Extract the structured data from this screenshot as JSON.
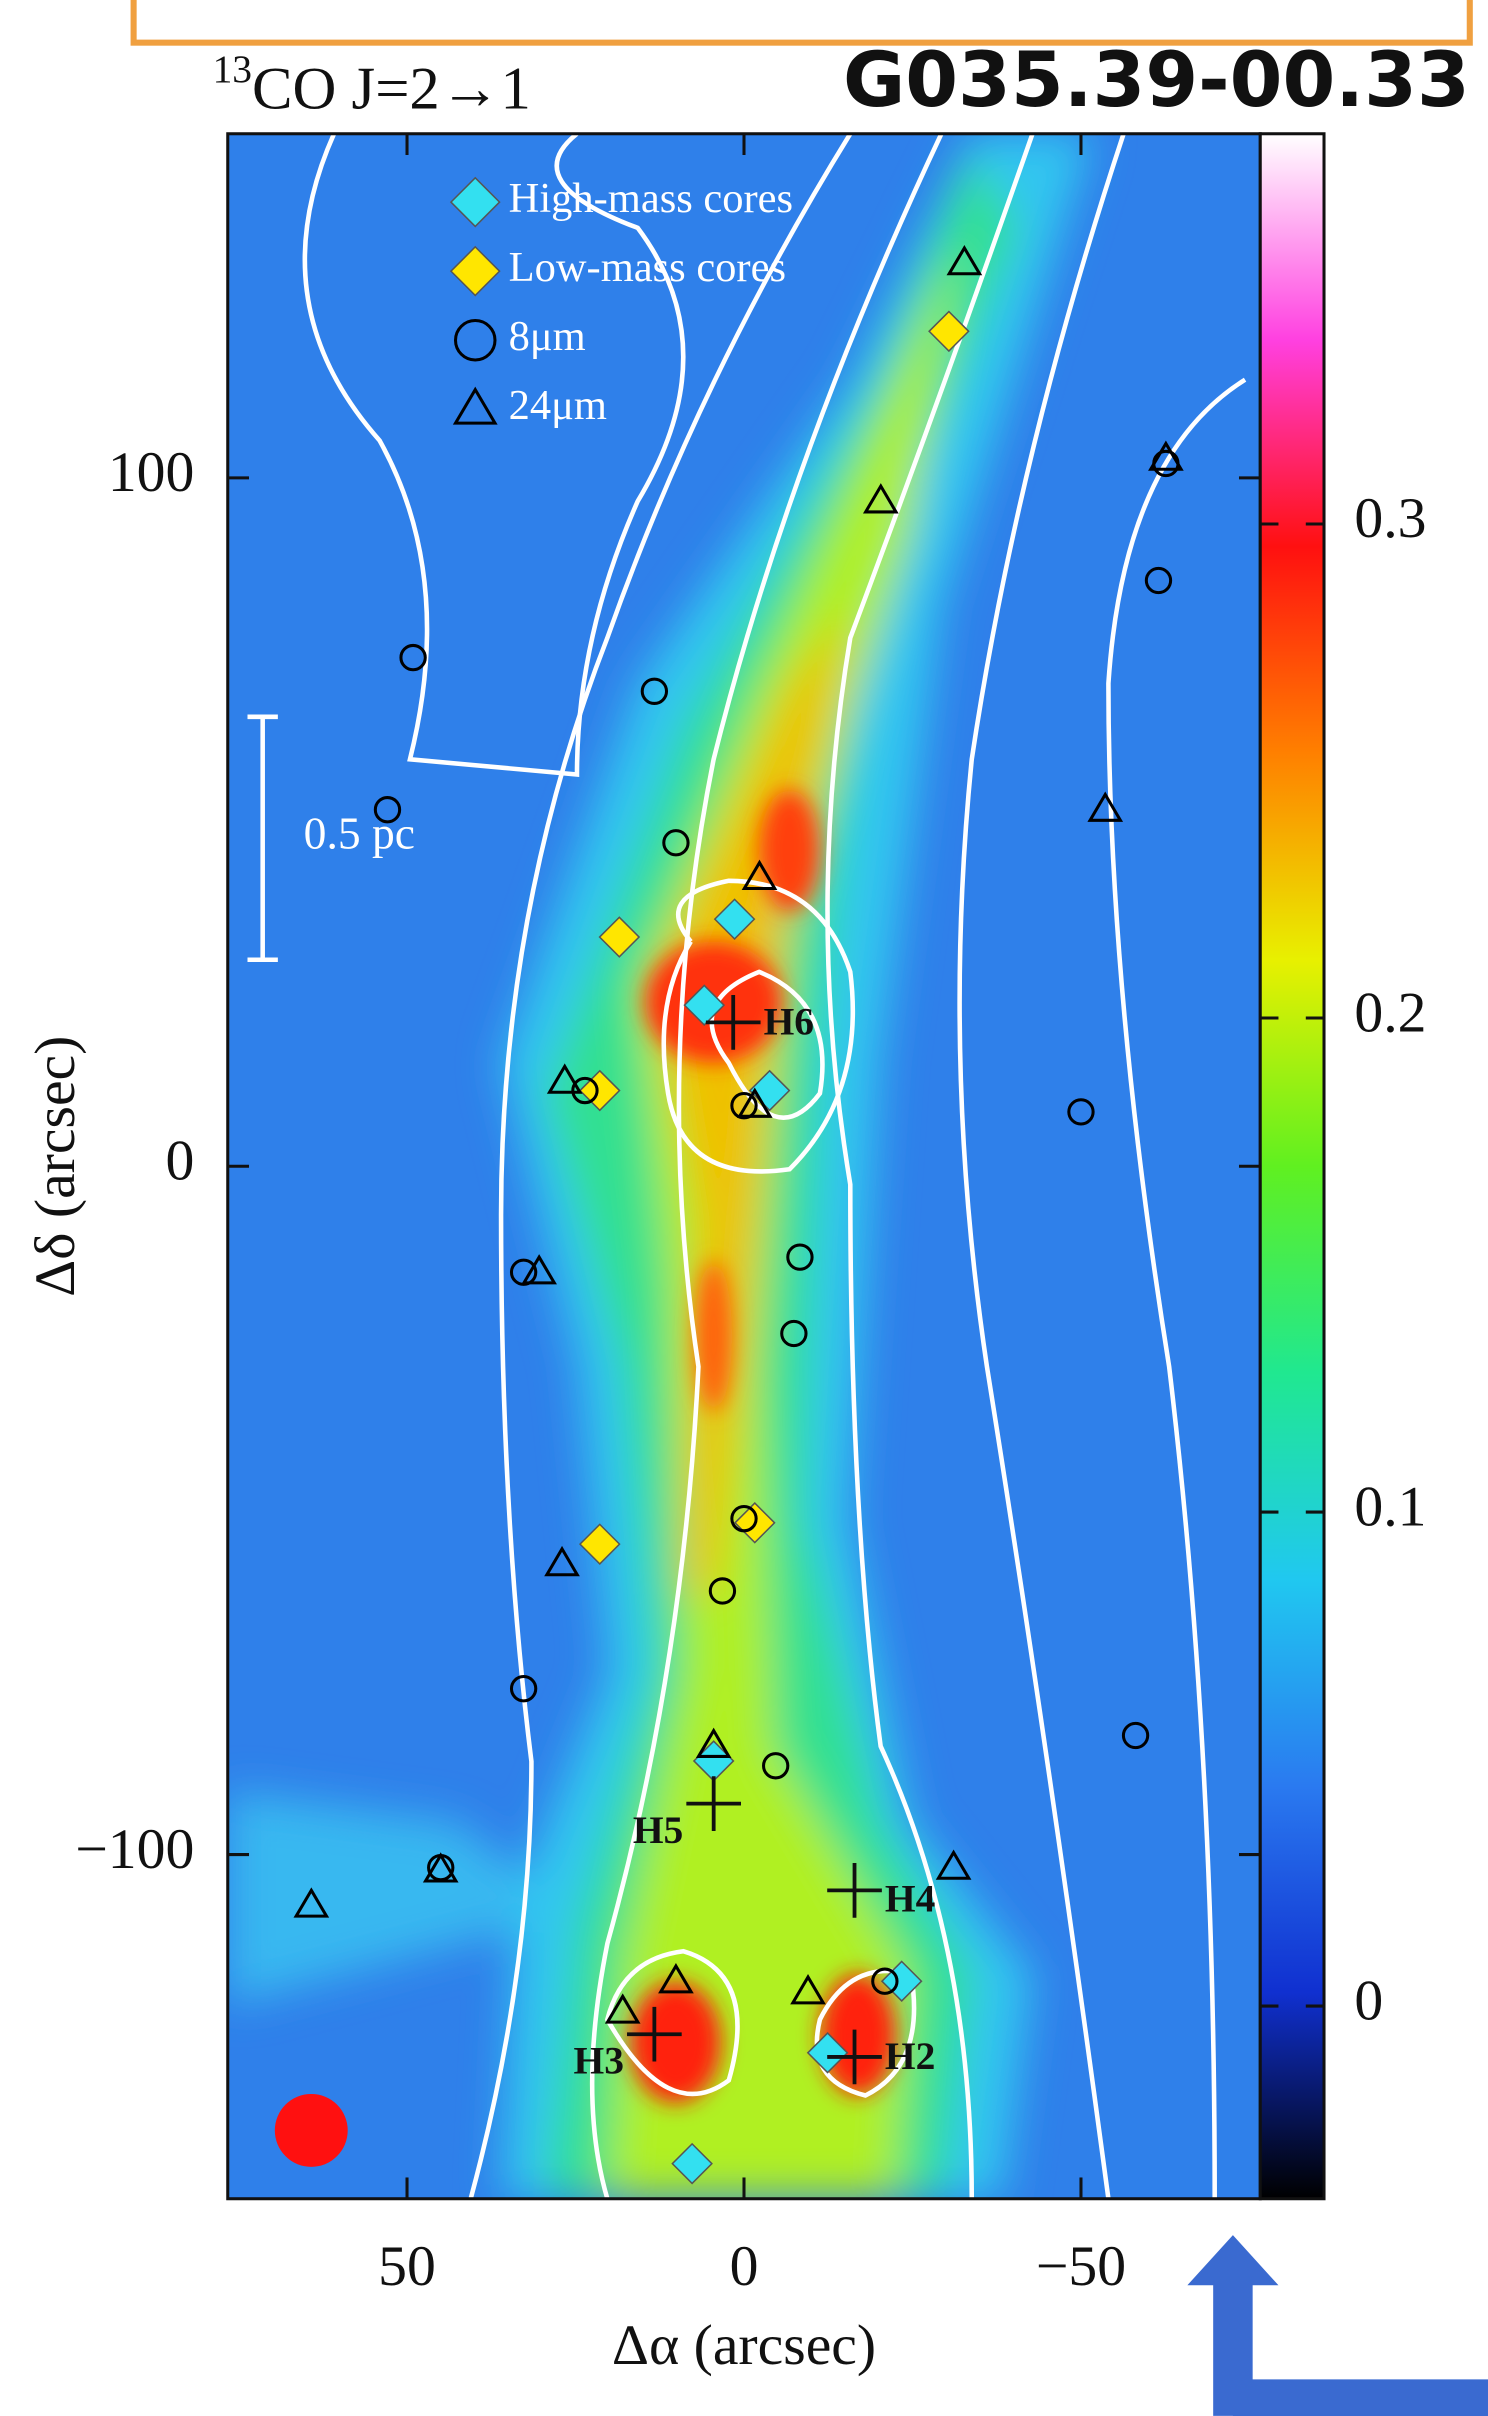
{
  "chart_data": {
    "type": "scatter",
    "title": "G035.39-00.33",
    "line_label": {
      "isotope": "13",
      "molecule": "CO  J=2→1"
    },
    "x_label": "Δα (arcsec)",
    "y_label": "Δδ (arcsec)",
    "xlim": [
      76.6,
      -76.6
    ],
    "ylim": [
      -150,
      150
    ],
    "xticks": [
      50,
      0,
      {
        "value": -50,
        "label": "−50"
      }
    ],
    "yticks": [
      100,
      0,
      {
        "value": -100,
        "label": "−100"
      }
    ],
    "scalebar": "0.5 pc",
    "series": [
      {
        "name": "High-mass cores",
        "marker": "diamond",
        "color": "#33e0f0",
        "x": [
          1.4,
          5.9,
          -3.8,
          4.5,
          -23.4,
          -12.4,
          7.7
        ],
        "y": [
          35.9,
          23.4,
          11.0,
          -86.4,
          -118.4,
          -128.8,
          -144.9
        ]
      },
      {
        "name": "Low-mass cores",
        "marker": "diamond",
        "color": "#ffe600",
        "x": [
          -30.4,
          18.5,
          21.4,
          -1.6,
          21.4
        ],
        "y": [
          121.3,
          33.3,
          11.0,
          -51.8,
          -54.9
        ]
      },
      {
        "name": "8μm",
        "marker": "circle",
        "color": "#000000",
        "x": [
          13.3,
          52.9,
          10.1,
          23.6,
          0,
          -8.3,
          32.7,
          0,
          3.2,
          -4.7,
          45,
          -20.9,
          -62.6,
          49.1,
          -7.4,
          32.7,
          -58.1,
          -50,
          -61.5
        ],
        "y": [
          69.0,
          51.8,
          47,
          11.0,
          8.8,
          -13.2,
          -15.4,
          -51.2,
          -61.7,
          -87.1,
          -101.9,
          -118.4,
          102.1,
          73.9,
          -24.3,
          -75.9,
          -82.7,
          7.9,
          85.1
        ]
      },
      {
        "name": "24μm",
        "marker": "triangle",
        "color": "#000000",
        "x": [
          -32.7,
          -53.6,
          26.6,
          -1.6,
          -2.3,
          4.5,
          45,
          18,
          -9.5,
          10.1,
          -62.6,
          -20.3,
          30.4,
          27,
          64.2,
          -31.1
        ],
        "y": [
          131.2,
          51.8,
          12.3,
          8.8,
          41.9,
          -84.2,
          -102.3,
          -122.8,
          -120,
          -118.4,
          102.8,
          96.6,
          -15.4,
          -57.8,
          -107.4,
          -101.9
        ]
      }
    ],
    "annotations": [
      {
        "text": "H6",
        "x": 1.6,
        "y": 20.9
      },
      {
        "text": "H5",
        "x": 4.5,
        "y": -92.6
      },
      {
        "text": "H4",
        "x": -16.4,
        "y": -105.2
      },
      {
        "text": "H2",
        "x": -16.4,
        "y": -129.4
      },
      {
        "text": "H3",
        "x": 13.3,
        "y": -126.1
      }
    ],
    "colorbar": {
      "lim": [
        -0.039,
        0.379
      ],
      "ticks": [
        0,
        0.1,
        0.2,
        0.3
      ],
      "colors": [
        "#000000",
        "#1030d0",
        "#2a7af0",
        "#20c8f0",
        "#20e890",
        "#60f020",
        "#e8f000",
        "#ff8000",
        "#ff1010",
        "#ff40e0",
        "#ffffff"
      ]
    }
  }
}
